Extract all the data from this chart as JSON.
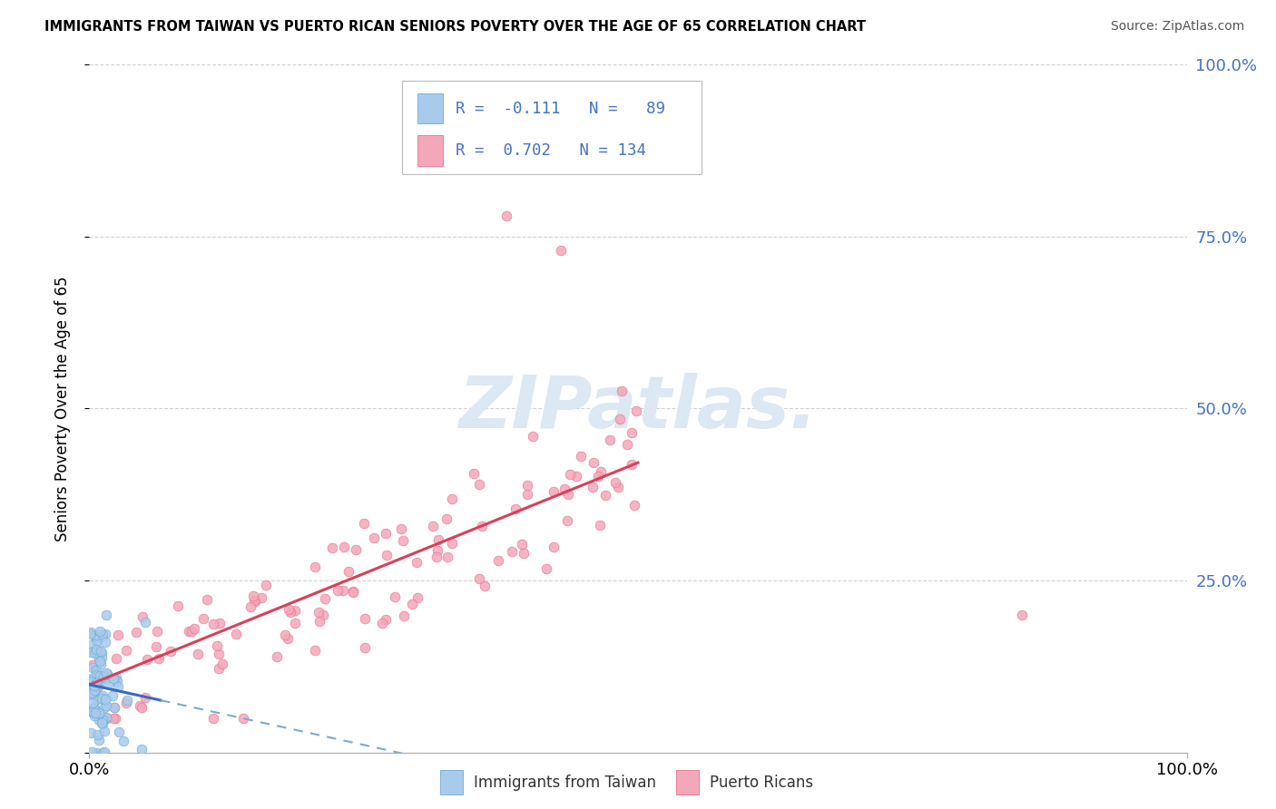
{
  "title": "IMMIGRANTS FROM TAIWAN VS PUERTO RICAN SENIORS POVERTY OVER THE AGE OF 65 CORRELATION CHART",
  "source": "Source: ZipAtlas.com",
  "ylabel": "Seniors Poverty Over the Age of 65",
  "taiwan_R": -0.111,
  "taiwan_N": 89,
  "pr_R": 0.702,
  "pr_N": 134,
  "blue_dot_color": "#a8caeb",
  "blue_dot_edge": "#6baed6",
  "pink_dot_color": "#f4a7b9",
  "pink_dot_edge": "#e8728a",
  "blue_line_solid_color": "#3a6bbf",
  "blue_line_dash_color": "#7aaad4",
  "pink_line_color": "#d9405a",
  "watermark_color": "#dce8f4",
  "bg_color": "#ffffff",
  "grid_color": "#cccccc",
  "right_tick_color": "#4472c4",
  "xlim": [
    0,
    1.0
  ],
  "ylim": [
    0,
    1.0
  ],
  "seed": 123
}
